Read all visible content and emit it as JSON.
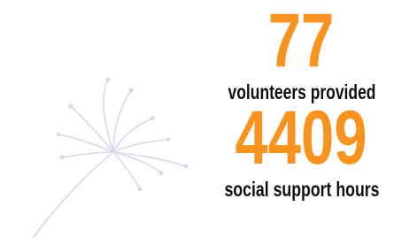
{
  "stats": [
    {
      "value": 77,
      "label": "volunteers provided"
    },
    {
      "value": 4409,
      "label": "social support hours"
    }
  ]
}
